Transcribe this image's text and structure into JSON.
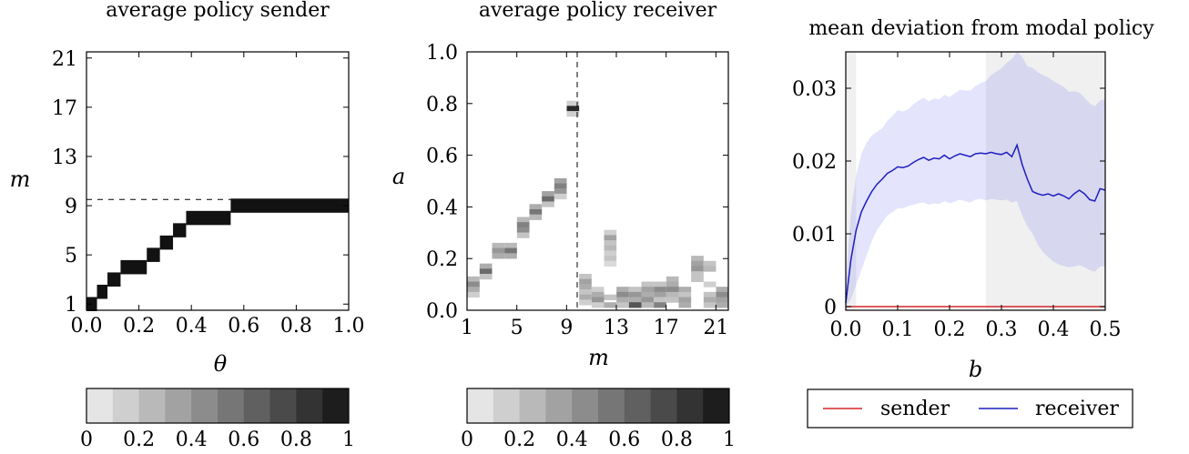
{
  "chart_data": [
    {
      "id": "sender",
      "type": "heatmap",
      "title": "average policy sender",
      "xlabel": "θ",
      "ylabel": "m",
      "xlim": [
        0,
        1
      ],
      "ylim": [
        1,
        21
      ],
      "xticks": [
        "0.0",
        "0.2",
        "0.4",
        "0.6",
        "0.8",
        "1.0"
      ],
      "yticks": [
        "1",
        "5",
        "9",
        "13",
        "17",
        "21"
      ],
      "reference_line": {
        "axis": "y",
        "value": 9.5,
        "style": "dashed"
      },
      "cells": [
        {
          "x": [
            0.0,
            0.04
          ],
          "m": 1,
          "value": 1
        },
        {
          "x": [
            0.04,
            0.08
          ],
          "m": 2,
          "value": 1
        },
        {
          "x": [
            0.08,
            0.13
          ],
          "m": 3,
          "value": 1
        },
        {
          "x": [
            0.13,
            0.23
          ],
          "m": 4,
          "value": 1
        },
        {
          "x": [
            0.23,
            0.28
          ],
          "m": 5,
          "value": 1
        },
        {
          "x": [
            0.28,
            0.33
          ],
          "m": 6,
          "value": 1
        },
        {
          "x": [
            0.33,
            0.38
          ],
          "m": 7,
          "value": 1
        },
        {
          "x": [
            0.38,
            0.55
          ],
          "m": 8,
          "value": 1
        },
        {
          "x": [
            0.55,
            1.0
          ],
          "m": 9,
          "value": 1
        }
      ],
      "colorbar": {
        "ticks": [
          "0",
          "0.2",
          "0.4",
          "0.6",
          "0.8",
          "1"
        ],
        "steps": 10,
        "range": [
          0,
          1
        ]
      }
    },
    {
      "id": "receiver",
      "type": "heatmap",
      "title": "average policy receiver",
      "xlabel": "m",
      "ylabel": "a",
      "xlim": [
        1,
        22
      ],
      "ylim": [
        0,
        1
      ],
      "xticks": [
        "1",
        "5",
        "9",
        "13",
        "17",
        "21"
      ],
      "yticks": [
        "0.0",
        "0.2",
        "0.4",
        "0.6",
        "0.8",
        "1.0"
      ],
      "reference_line": {
        "axis": "x",
        "value": 10,
        "style": "dashed"
      },
      "columns": [
        {
          "m": 1,
          "cells": [
            [
              0.12,
              0.25
            ],
            [
              0.1,
              0.45
            ],
            [
              0.08,
              0.3
            ],
            [
              0.06,
              0.15
            ]
          ]
        },
        {
          "m": 2,
          "cells": [
            [
              0.17,
              0.3
            ],
            [
              0.15,
              0.6
            ],
            [
              0.13,
              0.2
            ]
          ]
        },
        {
          "m": 3,
          "cells": [
            [
              0.25,
              0.25
            ],
            [
              0.23,
              0.4
            ],
            [
              0.21,
              0.3
            ]
          ]
        },
        {
          "m": 4,
          "cells": [
            [
              0.25,
              0.25
            ],
            [
              0.23,
              0.55
            ],
            [
              0.21,
              0.3
            ]
          ]
        },
        {
          "m": 5,
          "cells": [
            [
              0.35,
              0.25
            ],
            [
              0.33,
              0.5
            ],
            [
              0.31,
              0.45
            ],
            [
              0.29,
              0.2
            ]
          ]
        },
        {
          "m": 6,
          "cells": [
            [
              0.4,
              0.3
            ],
            [
              0.38,
              0.55
            ],
            [
              0.36,
              0.25
            ]
          ]
        },
        {
          "m": 7,
          "cells": [
            [
              0.45,
              0.35
            ],
            [
              0.43,
              0.6
            ],
            [
              0.41,
              0.2
            ]
          ]
        },
        {
          "m": 8,
          "cells": [
            [
              0.5,
              0.35
            ],
            [
              0.48,
              0.5
            ],
            [
              0.46,
              0.4
            ],
            [
              0.44,
              0.15
            ]
          ]
        },
        {
          "m": 9,
          "cells": [
            [
              0.8,
              0.15
            ],
            [
              0.78,
              0.9
            ],
            [
              0.76,
              0.15
            ]
          ]
        },
        {
          "m": 10,
          "cells": [
            [
              0.13,
              0.2
            ],
            [
              0.11,
              0.35
            ],
            [
              0.09,
              0.3
            ],
            [
              0.07,
              0.2
            ],
            [
              0.05,
              0.3
            ],
            [
              0.03,
              0.15
            ]
          ]
        },
        {
          "m": 11,
          "cells": [
            [
              0.08,
              0.15
            ],
            [
              0.06,
              0.3
            ],
            [
              0.04,
              0.4
            ],
            [
              0.02,
              0.15
            ]
          ]
        },
        {
          "m": 12,
          "cells": [
            [
              0.3,
              0.15
            ],
            [
              0.28,
              0.35
            ],
            [
              0.26,
              0.2
            ],
            [
              0.24,
              0.25
            ],
            [
              0.22,
              0.15
            ],
            [
              0.2,
              0.2
            ],
            [
              0.18,
              0.1
            ],
            [
              0.05,
              0.2
            ],
            [
              0.02,
              0.3
            ]
          ]
        },
        {
          "m": 13,
          "cells": [
            [
              0.08,
              0.3
            ],
            [
              0.06,
              0.45
            ],
            [
              0.04,
              0.3
            ],
            [
              0.02,
              0.2
            ]
          ]
        },
        {
          "m": 14,
          "cells": [
            [
              0.08,
              0.2
            ],
            [
              0.06,
              0.4
            ],
            [
              0.04,
              0.3
            ],
            [
              0.02,
              0.7
            ]
          ]
        },
        {
          "m": 15,
          "cells": [
            [
              0.1,
              0.2
            ],
            [
              0.08,
              0.35
            ],
            [
              0.06,
              0.3
            ],
            [
              0.04,
              0.4
            ],
            [
              0.02,
              0.25
            ]
          ]
        },
        {
          "m": 16,
          "cells": [
            [
              0.1,
              0.2
            ],
            [
              0.08,
              0.45
            ],
            [
              0.06,
              0.35
            ],
            [
              0.04,
              0.2
            ],
            [
              0.02,
              0.5
            ]
          ]
        },
        {
          "m": 17,
          "cells": [
            [
              0.12,
              0.25
            ],
            [
              0.1,
              0.3
            ],
            [
              0.08,
              0.45
            ],
            [
              0.06,
              0.25
            ],
            [
              0.04,
              0.2
            ]
          ]
        },
        {
          "m": 18,
          "cells": [
            [
              0.08,
              0.3
            ],
            [
              0.06,
              0.2
            ],
            [
              0.04,
              0.35
            ],
            [
              0.02,
              0.3
            ]
          ]
        },
        {
          "m": 19,
          "cells": [
            [
              0.2,
              0.25
            ],
            [
              0.18,
              0.35
            ],
            [
              0.16,
              0.4
            ],
            [
              0.14,
              0.2
            ],
            [
              0.12,
              0.2
            ]
          ]
        },
        {
          "m": 20,
          "cells": [
            [
              0.18,
              0.2
            ],
            [
              0.16,
              0.25
            ],
            [
              0.1,
              0.15
            ],
            [
              0.06,
              0.2
            ],
            [
              0.04,
              0.3
            ],
            [
              0.02,
              0.2
            ]
          ]
        },
        {
          "m": 21,
          "cells": [
            [
              0.08,
              0.3
            ],
            [
              0.06,
              0.45
            ],
            [
              0.04,
              0.35
            ],
            [
              0.02,
              0.3
            ]
          ]
        }
      ],
      "colorbar": {
        "ticks": [
          "0",
          "0.2",
          "0.4",
          "0.6",
          "0.8",
          "1"
        ],
        "steps": 10,
        "range": [
          0,
          1
        ]
      }
    },
    {
      "id": "deviation",
      "type": "line",
      "title": "mean deviation from modal policy",
      "xlabel": "b",
      "ylabel": "",
      "xlim": [
        0,
        0.5
      ],
      "ylim": [
        0,
        0.035
      ],
      "xticks": [
        "0.0",
        "0.1",
        "0.2",
        "0.3",
        "0.4",
        "0.5"
      ],
      "yticks": [
        "0",
        "0.01",
        "0.02",
        "0.03"
      ],
      "shaded_regions": [
        [
          0,
          0.02
        ],
        [
          0.27,
          0.5
        ]
      ],
      "x": [
        0,
        0.01,
        0.02,
        0.03,
        0.04,
        0.05,
        0.06,
        0.07,
        0.08,
        0.09,
        0.1,
        0.11,
        0.12,
        0.13,
        0.14,
        0.15,
        0.16,
        0.17,
        0.18,
        0.19,
        0.2,
        0.21,
        0.22,
        0.23,
        0.24,
        0.25,
        0.26,
        0.27,
        0.28,
        0.29,
        0.3,
        0.31,
        0.32,
        0.33,
        0.34,
        0.35,
        0.36,
        0.37,
        0.38,
        0.39,
        0.4,
        0.41,
        0.42,
        0.43,
        0.44,
        0.45,
        0.46,
        0.47,
        0.48,
        0.49,
        0.5
      ],
      "series": [
        {
          "name": "sender",
          "color": "#d62728",
          "values": [
            0,
            0,
            0,
            0,
            0,
            0,
            0,
            0,
            0,
            0,
            0,
            0,
            0,
            0,
            0,
            0,
            0,
            0,
            0,
            0,
            0,
            0,
            0,
            0,
            0,
            0,
            0,
            0,
            0,
            0,
            0,
            0,
            0,
            0,
            0,
            0,
            0,
            0,
            0,
            0,
            0,
            0,
            0,
            0,
            0,
            0,
            0,
            0,
            0,
            0,
            0
          ]
        },
        {
          "name": "receiver",
          "color": "#1f1fbf",
          "values": [
            0.0005,
            0.0065,
            0.0105,
            0.013,
            0.0145,
            0.0158,
            0.0168,
            0.0175,
            0.0183,
            0.0187,
            0.0192,
            0.0191,
            0.0193,
            0.0198,
            0.0202,
            0.0205,
            0.0201,
            0.0204,
            0.0203,
            0.0208,
            0.0203,
            0.0207,
            0.021,
            0.0208,
            0.0206,
            0.021,
            0.0211,
            0.021,
            0.0212,
            0.021,
            0.0209,
            0.0212,
            0.0206,
            0.0222,
            0.0195,
            0.0175,
            0.0158,
            0.0155,
            0.0153,
            0.0155,
            0.0152,
            0.0155,
            0.0152,
            0.0148,
            0.0155,
            0.016,
            0.0155,
            0.0147,
            0.0145,
            0.0162,
            0.016
          ],
          "band_lower": [
            0,
            0.001,
            0.003,
            0.005,
            0.007,
            0.009,
            0.0105,
            0.0115,
            0.0125,
            0.013,
            0.0135,
            0.0135,
            0.0138,
            0.014,
            0.0142,
            0.0143,
            0.014,
            0.0142,
            0.0141,
            0.0145,
            0.0142,
            0.0144,
            0.0147,
            0.0145,
            0.0143,
            0.0147,
            0.0148,
            0.0146,
            0.0148,
            0.0147,
            0.0146,
            0.0147,
            0.0143,
            0.0145,
            0.0125,
            0.011,
            0.01,
            0.0085,
            0.0075,
            0.0068,
            0.0062,
            0.0058,
            0.0056,
            0.0054,
            0.0055,
            0.0057,
            0.0054,
            0.005,
            0.0048,
            0.0055,
            0.0056
          ],
          "band_upper": [
            0.003,
            0.013,
            0.018,
            0.021,
            0.0225,
            0.0235,
            0.024,
            0.0245,
            0.0255,
            0.0262,
            0.027,
            0.0268,
            0.0271,
            0.0278,
            0.0283,
            0.0287,
            0.0282,
            0.0286,
            0.0285,
            0.0291,
            0.0288,
            0.0293,
            0.0298,
            0.0297,
            0.0297,
            0.0303,
            0.0307,
            0.031,
            0.0318,
            0.0323,
            0.0327,
            0.0335,
            0.034,
            0.0355,
            0.0343,
            0.033,
            0.0328,
            0.0322,
            0.0318,
            0.0315,
            0.031,
            0.0306,
            0.0302,
            0.0295,
            0.0296,
            0.0294,
            0.0287,
            0.0279,
            0.0275,
            0.0283,
            0.0285
          ]
        }
      ],
      "legend": {
        "placement": "bottom",
        "entries": [
          "sender",
          "receiver"
        ]
      }
    }
  ]
}
